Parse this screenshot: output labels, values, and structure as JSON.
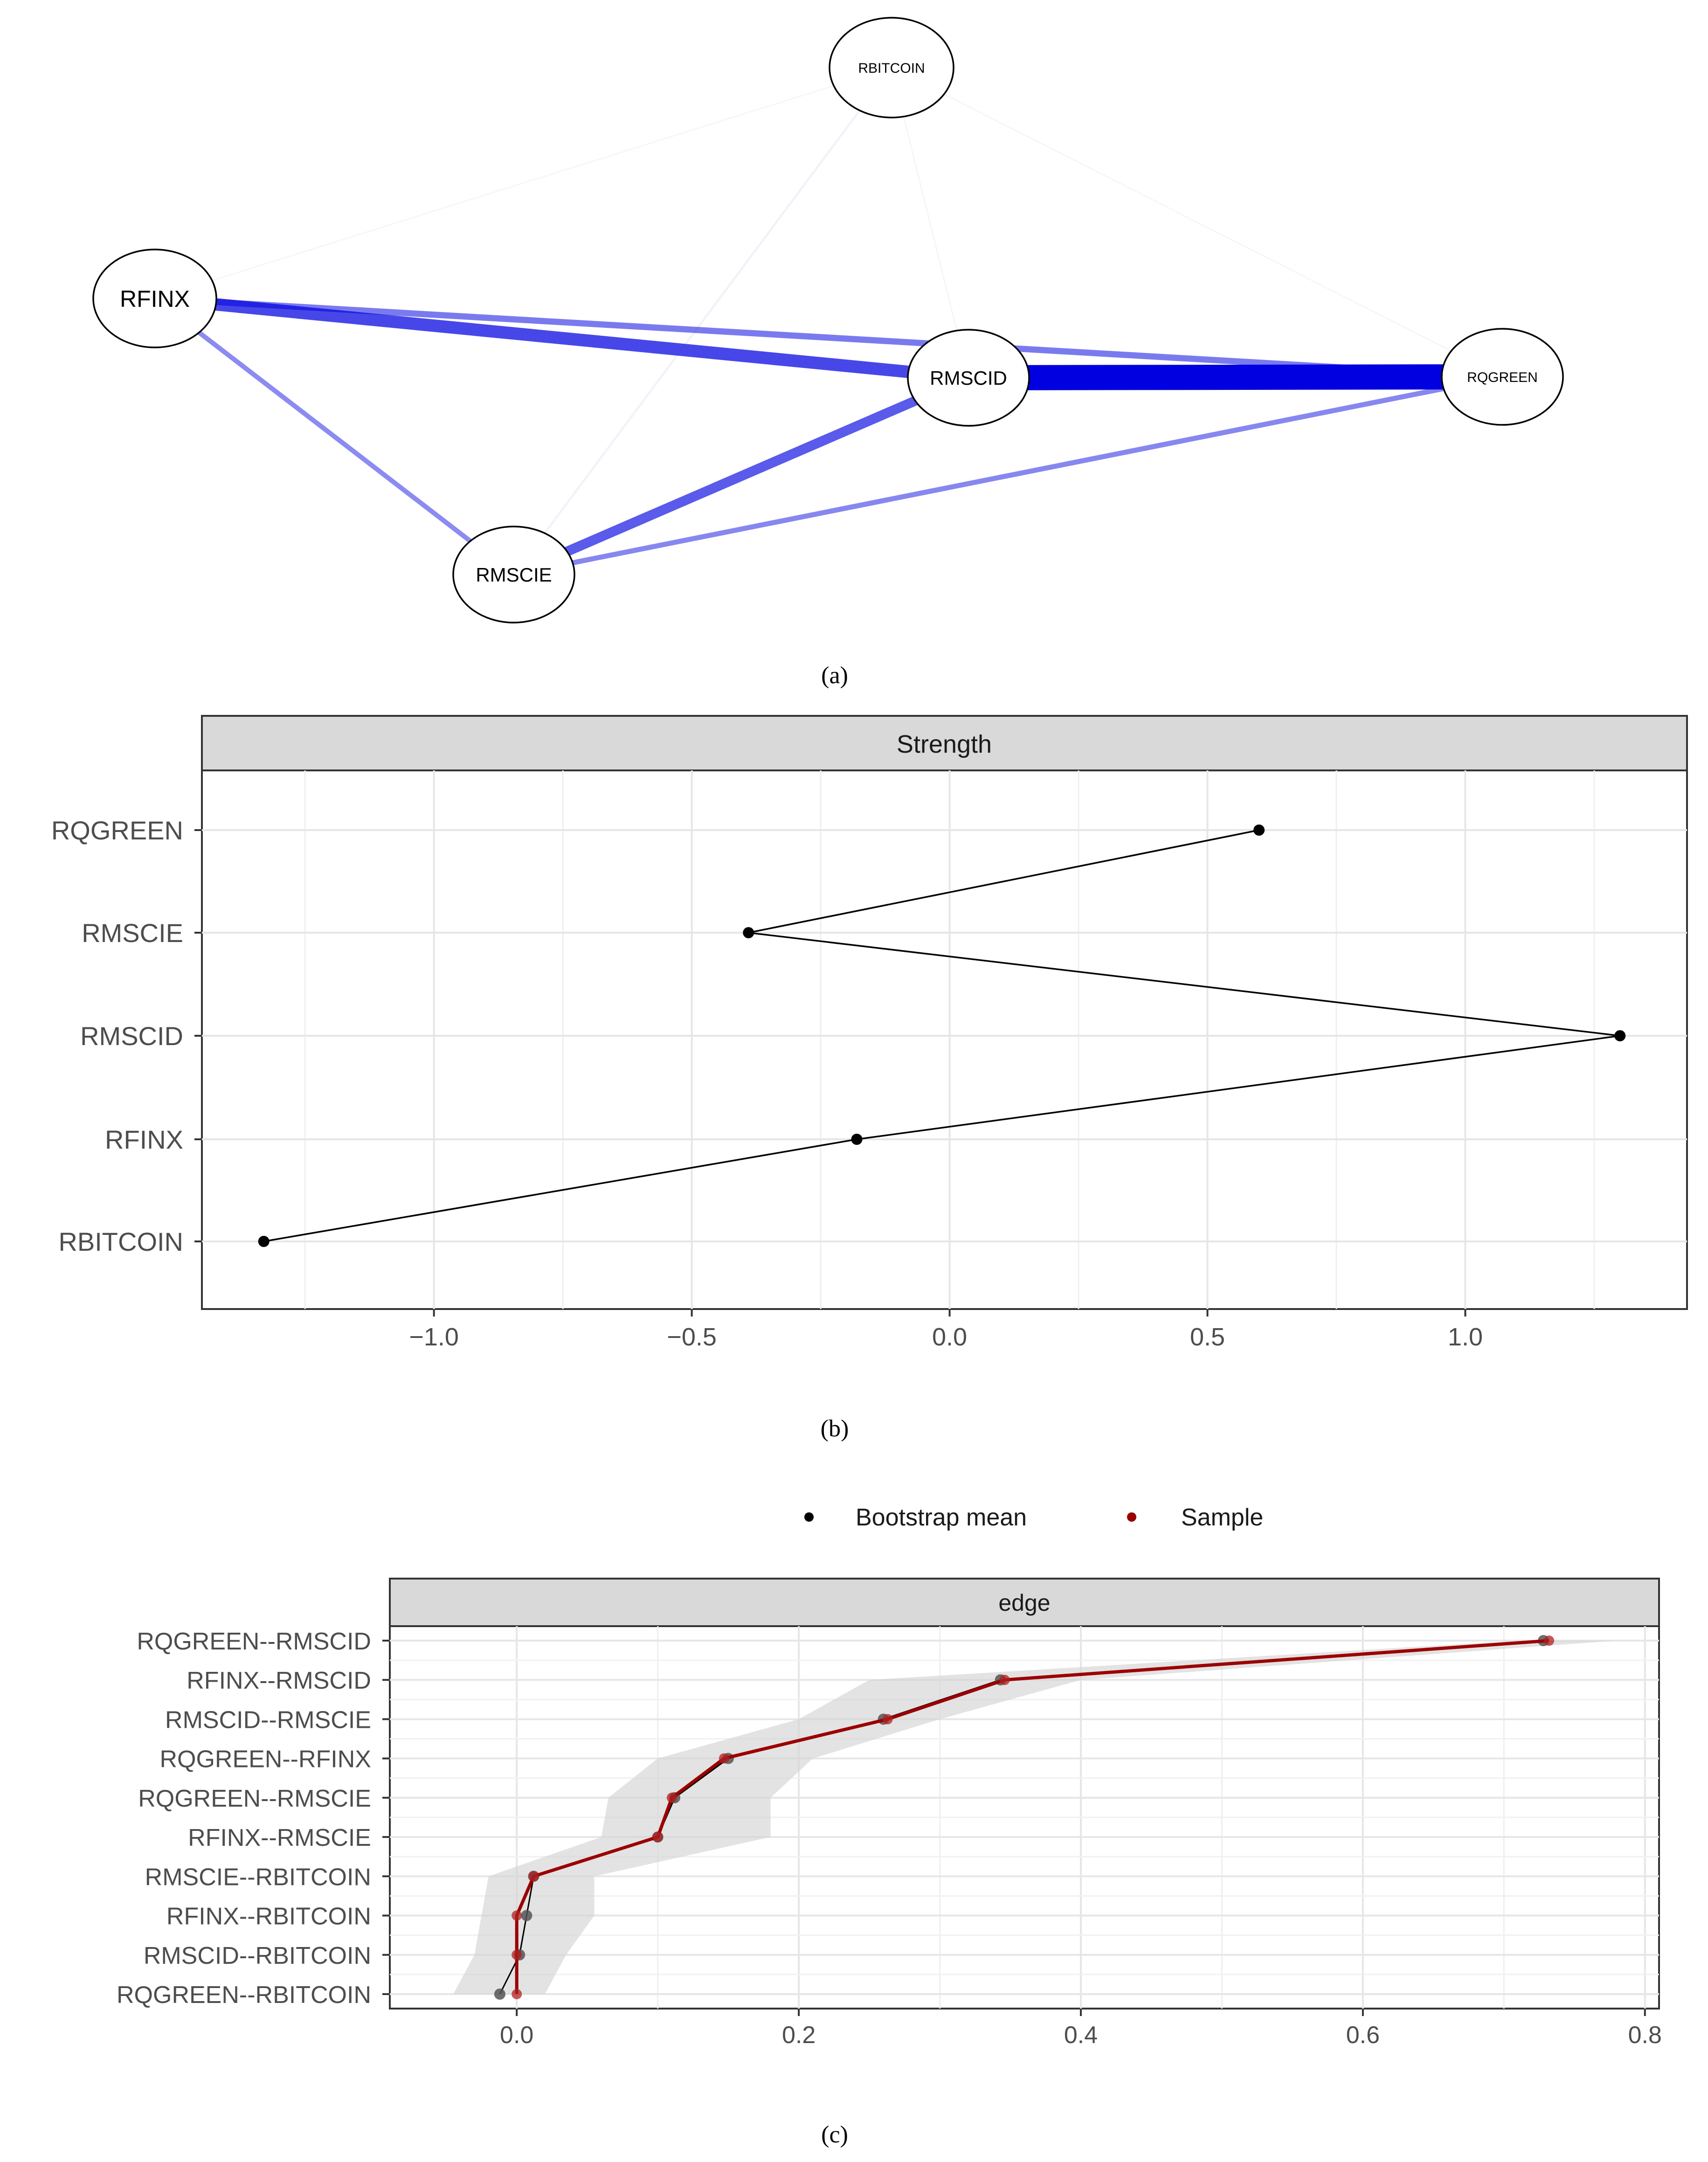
{
  "captions": {
    "a": "(a)",
    "b": "(b)",
    "c": "(c)"
  },
  "colors": {
    "edge_positive": "#0000e0",
    "edge_faint": "#c8c8f2",
    "sample": "#9b0000",
    "bootstrap": "#000000",
    "band": "#d4d4d4",
    "strip": "#d9d9d9",
    "grid": "#e6e6e6"
  },
  "chart_data": [
    {
      "type": "network",
      "panel": "a",
      "nodes": [
        {
          "id": "RBITCOIN",
          "label": "RBITCOIN"
        },
        {
          "id": "RFINX",
          "label": "RFINX"
        },
        {
          "id": "RMSCID",
          "label": "RMSCID"
        },
        {
          "id": "RQGREEN",
          "label": "RQGREEN"
        },
        {
          "id": "RMSCIE",
          "label": "RMSCIE"
        }
      ],
      "edges": [
        {
          "from": "RQGREEN",
          "to": "RMSCID",
          "weight": 0.73
        },
        {
          "from": "RFINX",
          "to": "RMSCID",
          "weight": 0.345
        },
        {
          "from": "RMSCID",
          "to": "RMSCIE",
          "weight": 0.262
        },
        {
          "from": "RQGREEN",
          "to": "RFINX",
          "weight": 0.148
        },
        {
          "from": "RQGREEN",
          "to": "RMSCIE",
          "weight": 0.11
        },
        {
          "from": "RFINX",
          "to": "RMSCIE",
          "weight": 0.1
        },
        {
          "from": "RMSCIE",
          "to": "RBITCOIN",
          "weight": 0.012
        },
        {
          "from": "RFINX",
          "to": "RBITCOIN",
          "weight": 0.0
        },
        {
          "from": "RMSCID",
          "to": "RBITCOIN",
          "weight": 0.0
        },
        {
          "from": "RQGREEN",
          "to": "RBITCOIN",
          "weight": 0.0
        }
      ]
    },
    {
      "type": "line",
      "panel": "b",
      "strip": "Strength",
      "categories": [
        "RQGREEN",
        "RMSCIE",
        "RMSCID",
        "RFINX",
        "RBITCOIN"
      ],
      "values": [
        0.6,
        -0.39,
        1.3,
        -0.18,
        -1.33
      ],
      "xlim": [
        -1.45,
        1.43
      ],
      "xticks": [
        -1.0,
        -0.5,
        0.0,
        0.5,
        1.0
      ],
      "xtick_labels": [
        "−1.0",
        "−0.5",
        "0.0",
        "0.5",
        "1.0"
      ]
    },
    {
      "type": "line",
      "panel": "c",
      "strip": "edge",
      "legend": [
        "Bootstrap mean",
        "Sample"
      ],
      "categories": [
        "RQGREEN--RMSCID",
        "RFINX--RMSCID",
        "RMSCID--RMSCIE",
        "RQGREEN--RFINX",
        "RQGREEN--RMSCIE",
        "RFINX--RMSCIE",
        "RMSCIE--RBITCOIN",
        "RFINX--RBITCOIN",
        "RMSCID--RBITCOIN",
        "RQGREEN--RBITCOIN"
      ],
      "series": [
        {
          "name": "Sample",
          "values": [
            0.732,
            0.346,
            0.263,
            0.147,
            0.11,
            0.1,
            0.012,
            0.0,
            0.0,
            0.0
          ]
        },
        {
          "name": "Bootstrap mean",
          "values": [
            0.728,
            0.343,
            0.26,
            0.15,
            0.112,
            0.1,
            0.012,
            0.007,
            0.002,
            -0.012
          ]
        }
      ],
      "ci_lower": [
        0.71,
        0.25,
        0.2,
        0.1,
        0.065,
        0.06,
        -0.02,
        -0.025,
        -0.03,
        -0.045
      ],
      "ci_upper": [
        0.78,
        0.4,
        0.3,
        0.21,
        0.18,
        0.18,
        0.055,
        0.055,
        0.035,
        0.02
      ],
      "xlim": [
        -0.09,
        0.81
      ],
      "xticks": [
        0.0,
        0.2,
        0.4,
        0.6,
        0.8
      ],
      "xtick_labels": [
        "0.0",
        "0.2",
        "0.4",
        "0.6",
        "0.8"
      ]
    }
  ]
}
